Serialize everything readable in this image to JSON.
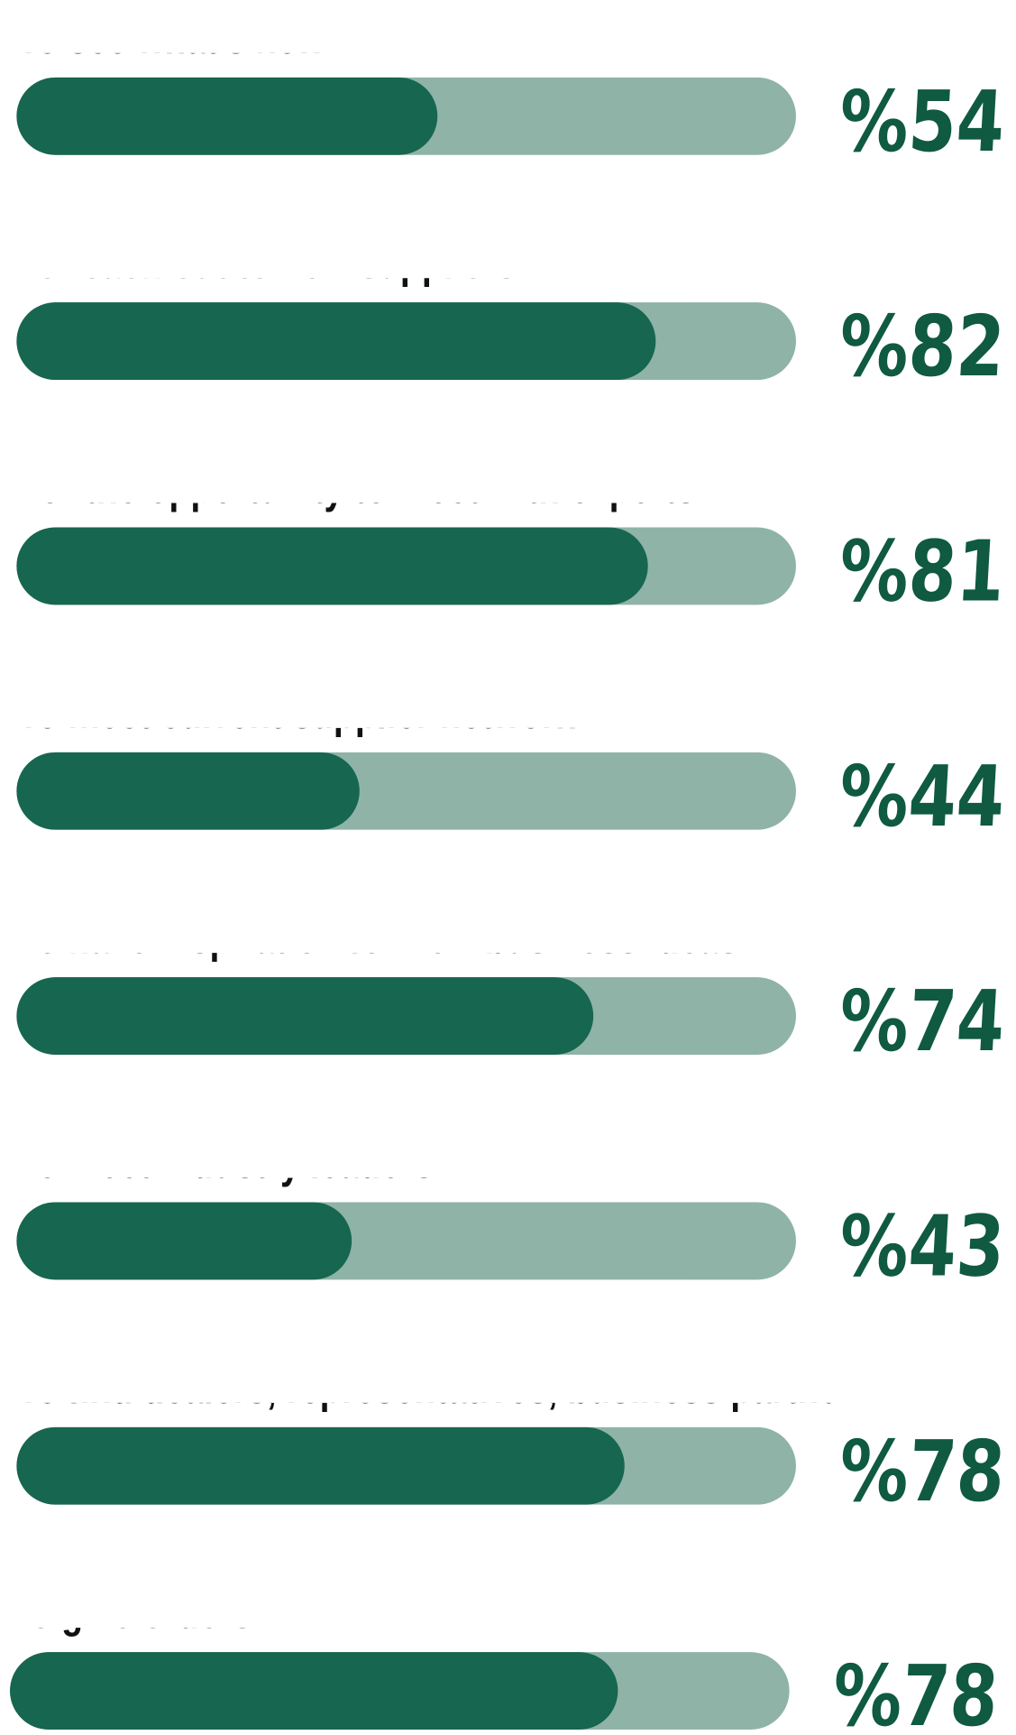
{
  "chart_data": {
    "type": "bar",
    "orientation": "horizontal",
    "categories": [
      "To see what's new",
      "To reach out to new suppliers",
      "For the opportunity  to meet with experts",
      "To meet current supplier network",
      "To have inspiration for new business ideas",
      "To meet industry leaders",
      "To find dealers, representatives, business partners and",
      "To give orders"
    ],
    "values": [
      54,
      82,
      81,
      44,
      74,
      43,
      78,
      78
    ],
    "value_labels": [
      "%54",
      "%82",
      "%81",
      "%44",
      "%74",
      "%43",
      "%78",
      "%78"
    ],
    "xlim": [
      0,
      100
    ],
    "color": "#17664f",
    "track_color": "#8fb3a7"
  }
}
